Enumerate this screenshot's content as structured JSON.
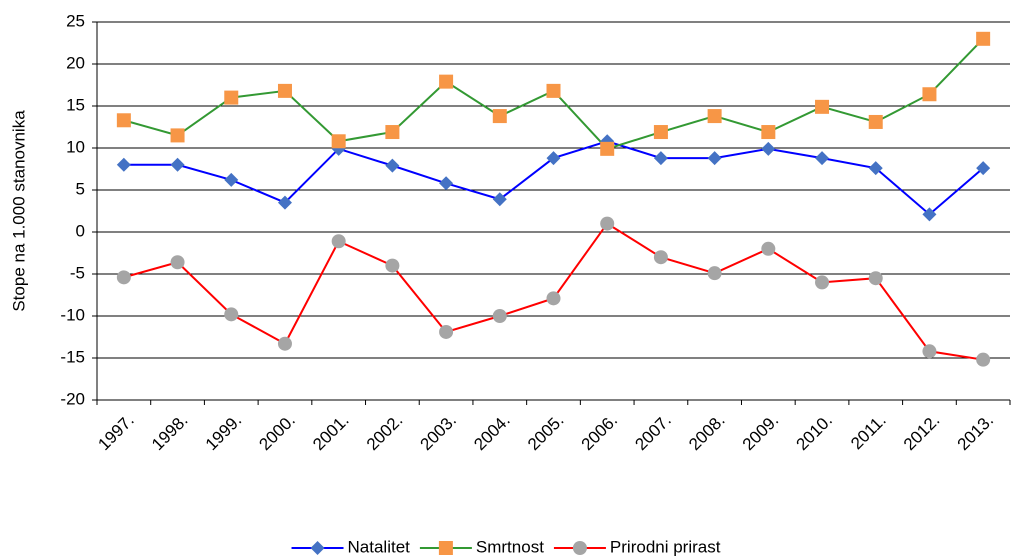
{
  "chart_data": {
    "type": "line",
    "ylabel": "Stope na 1.000 stanovnika",
    "categories": [
      "1997.",
      "1998.",
      "1999.",
      "2000.",
      "2001.",
      "2002.",
      "2003.",
      "2004.",
      "2005.",
      "2006.",
      "2007.",
      "2008.",
      "2009.",
      "2010.",
      "2011.",
      "2012.",
      "2013."
    ],
    "series": [
      {
        "name": "Natalitet",
        "color": "#0000ff",
        "marker": "diamond",
        "marker_color": "#4472c4",
        "values": [
          8.0,
          8.0,
          6.2,
          3.5,
          9.9,
          7.9,
          5.8,
          3.9,
          8.8,
          10.8,
          8.8,
          8.8,
          9.9,
          8.8,
          7.6,
          2.1,
          7.6
        ]
      },
      {
        "name": "Smrtnost",
        "color": "#339933",
        "marker": "square",
        "marker_color": "#f79646",
        "values": [
          13.3,
          11.5,
          16.0,
          16.8,
          10.8,
          11.9,
          17.9,
          13.8,
          16.8,
          9.9,
          11.9,
          13.8,
          11.9,
          14.9,
          13.1,
          16.4,
          23.0
        ]
      },
      {
        "name": "Prirodni prirast",
        "color": "#ff0000",
        "marker": "circle",
        "marker_color": "#a5a5a5",
        "values": [
          -5.4,
          -3.6,
          -9.8,
          -13.3,
          -1.1,
          -4.0,
          -11.9,
          -10.0,
          -7.9,
          1.0,
          -3.0,
          -4.9,
          -2.0,
          -6.0,
          -5.5,
          -14.2,
          -15.2
        ]
      }
    ],
    "ylim": [
      -20,
      25
    ],
    "yticks": [
      -20,
      -15,
      -10,
      -5,
      0,
      5,
      10,
      15,
      20,
      25
    ],
    "grid": true,
    "legend": "bottom"
  }
}
